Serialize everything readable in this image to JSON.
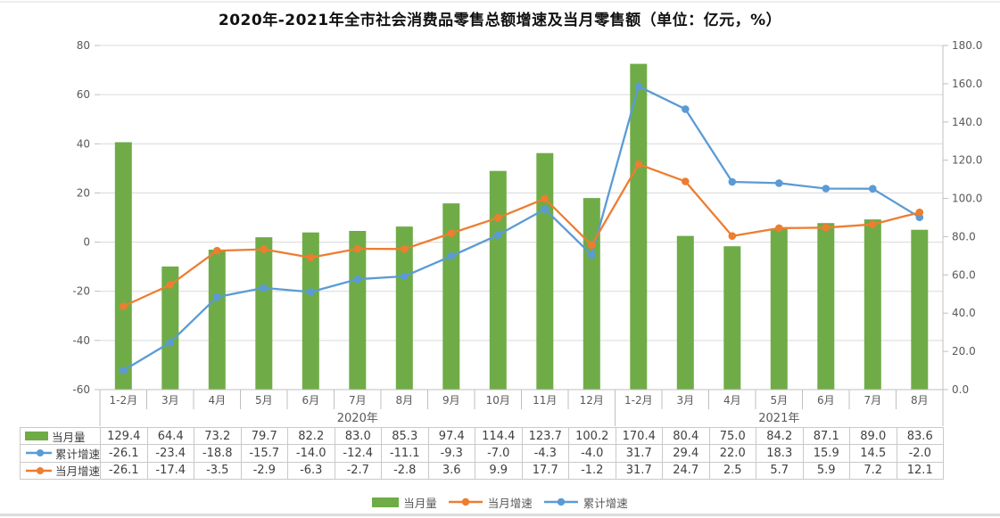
{
  "title": "2020年-2021年全市社会消费品零售总额增速及当月零售额（单位：亿元，%）",
  "colors": {
    "bar_green": "#6FAC47",
    "line_orange": "#ED7D31",
    "line_blue": "#5B9BD5",
    "gridline": "#D9D9D9",
    "axis_line": "#BFBFBF",
    "axis_text": "#595959",
    "table_border": "#C9C9C9",
    "table_text": "#3F3F3F"
  },
  "chart_data": {
    "type": "combo",
    "title": "2020年-2021年全市社会消费品零售总额增速及当月零售额（单位：亿元，%）",
    "categories": [
      "1-2月",
      "3月",
      "4月",
      "5月",
      "6月",
      "7月",
      "8月",
      "9月",
      "10月",
      "11月",
      "12月",
      "1-2月",
      "3月",
      "4月",
      "5月",
      "6月",
      "7月",
      "8月"
    ],
    "year_groups": [
      {
        "label": "2020年",
        "span": 11
      },
      {
        "label": "2021年",
        "span": 7
      }
    ],
    "series": [
      {
        "name": "当月量",
        "type": "bar",
        "axis": "right",
        "color": "#6FAC47",
        "values": [
          129.4,
          64.4,
          73.2,
          79.7,
          82.2,
          83.0,
          85.3,
          97.4,
          114.4,
          123.7,
          100.2,
          170.4,
          80.4,
          75.0,
          84.2,
          87.1,
          89.0,
          83.6
        ]
      },
      {
        "name": "当月增速",
        "type": "line",
        "axis": "left",
        "color": "#ED7D31",
        "values": [
          -26.1,
          -17.4,
          -3.5,
          -2.9,
          -6.3,
          -2.7,
          -2.8,
          3.6,
          9.9,
          17.7,
          -1.2,
          31.7,
          24.7,
          2.5,
          5.7,
          5.9,
          7.2,
          12.1
        ]
      },
      {
        "name": "累计增速",
        "type": "line",
        "axis": "left",
        "color": "#5B9BD5",
        "values": [
          -26.1,
          -23.4,
          -18.8,
          -15.7,
          -14.0,
          -12.4,
          -11.1,
          -9.3,
          -7.0,
          -4.3,
          -4.0,
          31.7,
          29.4,
          22.0,
          18.3,
          15.9,
          14.5,
          -2.0
        ],
        "plotted_as": "stacked_on_monthly_growth"
      }
    ],
    "left_axis": {
      "min": -60,
      "max": 80,
      "step": 20,
      "ticks": [
        "80",
        "60",
        "40",
        "20",
        "0",
        "-20",
        "-40",
        "-60"
      ]
    },
    "right_axis": {
      "min": 0,
      "max": 180,
      "step": 20,
      "ticks": [
        "180.0",
        "160.0",
        "140.0",
        "120.0",
        "100.0",
        "80.0",
        "60.0",
        "40.0",
        "20.0",
        "0.0"
      ]
    },
    "grid": true,
    "legend_position": "bottom"
  },
  "table": {
    "rows": [
      {
        "label": "当月量",
        "swatch": "bar",
        "color": "#6FAC47",
        "series_index": 0
      },
      {
        "label": "累计增速",
        "swatch": "line",
        "color": "#5B9BD5",
        "series_index": 2
      },
      {
        "label": "当月增速",
        "swatch": "line",
        "color": "#ED7D31",
        "series_index": 1
      }
    ]
  },
  "legend": {
    "items": [
      {
        "label": "当月量",
        "marker": "bar",
        "color": "#6FAC47"
      },
      {
        "label": "当月增速",
        "marker": "line",
        "color": "#ED7D31"
      },
      {
        "label": "累计增速",
        "marker": "line",
        "color": "#5B9BD5"
      }
    ]
  }
}
